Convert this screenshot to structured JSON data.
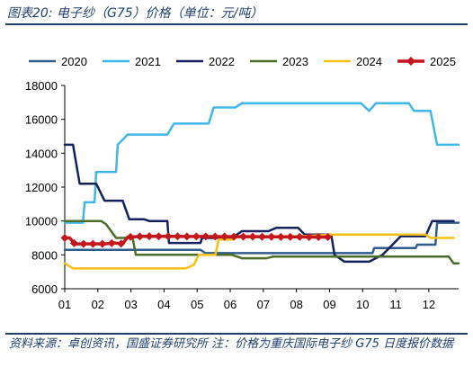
{
  "title": "图表20:  电子纱（G75）价格（单位：元/吨）",
  "source_note": "资料来源：卓创资讯，国盛证券研究所    注：价格为重庆国际电子纱 G75 日度报价数据",
  "chart_data": {
    "type": "line",
    "title": "电子纱（G75）价格（单位：元/吨）",
    "xlabel": "",
    "ylabel": "",
    "xlim": [
      1,
      12.9
    ],
    "ylim": [
      6000,
      18000
    ],
    "x_tick_labels": [
      "01",
      "02",
      "03",
      "04",
      "05",
      "06",
      "07",
      "08",
      "09",
      "10",
      "11",
      "12"
    ],
    "y_ticks": [
      6000,
      8000,
      10000,
      12000,
      14000,
      16000,
      18000
    ],
    "legend_position": "top",
    "grid": false,
    "series": [
      {
        "name": "2020",
        "color": "#2f5b8c",
        "marker": "none",
        "points": [
          [
            1,
            8300
          ],
          [
            5.1,
            8300
          ],
          [
            5.25,
            8100
          ],
          [
            9.6,
            8100
          ],
          [
            10.3,
            8100
          ],
          [
            10.35,
            8400
          ],
          [
            11.6,
            8400
          ],
          [
            11.65,
            8600
          ],
          [
            12.2,
            8600
          ],
          [
            12.25,
            9900
          ],
          [
            12.9,
            9900
          ]
        ]
      },
      {
        "name": "2021",
        "color": "#3fb8e8",
        "marker": "none",
        "points": [
          [
            1,
            9900
          ],
          [
            1.55,
            9900
          ],
          [
            1.6,
            11100
          ],
          [
            1.9,
            11100
          ],
          [
            1.95,
            12900
          ],
          [
            2.55,
            12900
          ],
          [
            2.6,
            14500
          ],
          [
            2.9,
            15100
          ],
          [
            4.1,
            15100
          ],
          [
            4.3,
            15750
          ],
          [
            5.35,
            15750
          ],
          [
            5.5,
            16700
          ],
          [
            6.15,
            16700
          ],
          [
            6.35,
            16950
          ],
          [
            8.7,
            16950
          ],
          [
            9.95,
            16950
          ],
          [
            10.2,
            16500
          ],
          [
            10.4,
            16950
          ],
          [
            11.4,
            16950
          ],
          [
            11.55,
            16500
          ],
          [
            12.05,
            16500
          ],
          [
            12.25,
            14500
          ],
          [
            12.9,
            14500
          ]
        ]
      },
      {
        "name": "2022",
        "color": "#13225e",
        "marker": "none",
        "points": [
          [
            1,
            14500
          ],
          [
            1.25,
            14500
          ],
          [
            1.45,
            12200
          ],
          [
            1.95,
            12200
          ],
          [
            2.2,
            11200
          ],
          [
            2.75,
            11200
          ],
          [
            2.95,
            10100
          ],
          [
            3.4,
            10100
          ],
          [
            3.55,
            10000
          ],
          [
            4.1,
            10000
          ],
          [
            4.15,
            8700
          ],
          [
            5.1,
            8700
          ],
          [
            5.15,
            9000
          ],
          [
            6.05,
            9000
          ],
          [
            6.35,
            9400
          ],
          [
            7.15,
            9400
          ],
          [
            7.4,
            9600
          ],
          [
            8.05,
            9600
          ],
          [
            8.25,
            9200
          ],
          [
            9.05,
            9200
          ],
          [
            9.15,
            8000
          ],
          [
            9.45,
            7600
          ],
          [
            10.2,
            7600
          ],
          [
            10.6,
            8000
          ],
          [
            10.75,
            8300
          ],
          [
            11.15,
            9100
          ],
          [
            11.9,
            9100
          ],
          [
            12.1,
            10000
          ],
          [
            12.75,
            10000
          ]
        ]
      },
      {
        "name": "2023",
        "color": "#4a6e27",
        "marker": "none",
        "points": [
          [
            1,
            10000
          ],
          [
            2.1,
            10000
          ],
          [
            2.25,
            9800
          ],
          [
            2.55,
            9000
          ],
          [
            3.05,
            9000
          ],
          [
            3.15,
            8000
          ],
          [
            6.05,
            8000
          ],
          [
            6.35,
            7800
          ],
          [
            7.1,
            7800
          ],
          [
            7.3,
            7900
          ],
          [
            9.1,
            7900
          ],
          [
            12.6,
            7900
          ],
          [
            12.75,
            7500
          ],
          [
            12.9,
            7500
          ]
        ]
      },
      {
        "name": "2024",
        "color": "#f7bf1a",
        "marker": "none",
        "points": [
          [
            1,
            7500
          ],
          [
            1.25,
            7200
          ],
          [
            4.65,
            7200
          ],
          [
            4.9,
            7400
          ],
          [
            5.05,
            8000
          ],
          [
            5.55,
            8000
          ],
          [
            5.65,
            8900
          ],
          [
            6.05,
            8900
          ],
          [
            6.3,
            9100
          ],
          [
            8.1,
            9100
          ],
          [
            9.1,
            9200
          ],
          [
            11.9,
            9200
          ],
          [
            12.05,
            9000
          ],
          [
            12.75,
            9000
          ]
        ]
      },
      {
        "name": "2025",
        "color": "#c4161c",
        "marker": "diamond",
        "points": [
          [
            1,
            9000
          ],
          [
            1.15,
            9000
          ],
          [
            1.3,
            8650
          ],
          [
            2.2,
            8650
          ],
          [
            2.5,
            8700
          ],
          [
            2.75,
            8650
          ],
          [
            2.9,
            9050
          ],
          [
            3.4,
            9100
          ],
          [
            8.95,
            9050
          ]
        ]
      }
    ]
  }
}
